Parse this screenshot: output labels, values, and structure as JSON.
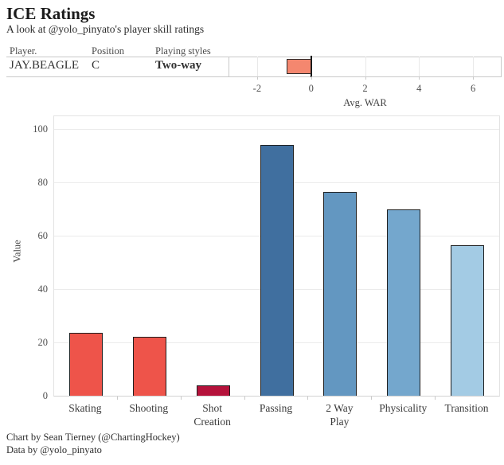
{
  "header": {
    "title": "ICE Ratings",
    "subtitle": "A look at @yolo_pinyato's player skill ratings"
  },
  "table": {
    "columns": [
      "Player.",
      "Position",
      "Playing styles"
    ],
    "row": {
      "player": "JAY.BEAGLE",
      "position": "C",
      "style": "Two-way"
    }
  },
  "chart_data": [
    {
      "type": "bar",
      "orientation": "horizontal",
      "title": "",
      "xlabel": "Avg. WAR",
      "value": -0.9,
      "bar_color": "#f4876f",
      "bar_border_color": "#2a2a2a",
      "xlim": [
        -3,
        7
      ],
      "xticks": [
        -2,
        0,
        2,
        4,
        6
      ],
      "zero_line": 0,
      "grid": true
    },
    {
      "type": "bar",
      "title": "",
      "xlabel": "",
      "ylabel": "Value",
      "ylim": [
        0,
        100
      ],
      "yticks": [
        0,
        20,
        40,
        60,
        80,
        100
      ],
      "grid": true,
      "legend": false,
      "categories": [
        "Skating",
        "Shooting",
        "Shot Creation",
        "Passing",
        "2 Way Play",
        "Physicality",
        "Transition"
      ],
      "label_lines": [
        [
          "Skating"
        ],
        [
          "Shooting"
        ],
        [
          "Shot",
          "Creation"
        ],
        [
          "Passing"
        ],
        [
          "2 Way",
          "Play"
        ],
        [
          "Physicality"
        ],
        [
          "Transition"
        ]
      ],
      "values": [
        23.5,
        22,
        4,
        94,
        76.5,
        70,
        56.5
      ],
      "colors": [
        "#ee544a",
        "#ee544a",
        "#b5123b",
        "#406f9f",
        "#6397c1",
        "#74a7cd",
        "#a3cbe4"
      ]
    }
  ],
  "footer": {
    "line1": "Chart by Sean Tierney (@ChartingHockey)",
    "line2": "Data by @yolo_pinyato"
  }
}
